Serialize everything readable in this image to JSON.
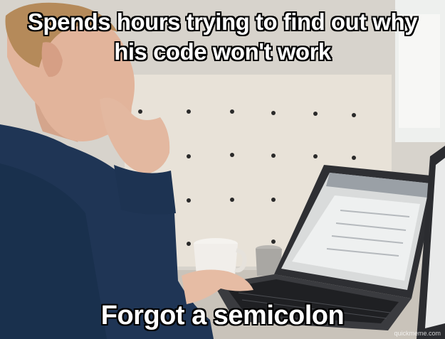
{
  "meme": {
    "top_line1": "Spends hours trying to find out why",
    "top_line2": "his code won't work",
    "bottom_text": "Forgot a semicolon",
    "watermark": "quickmeme.com"
  },
  "colors": {
    "sweater": "#1f3555",
    "skin": "#e3b8a0",
    "laptop": "#2d2e31",
    "wall": "#ece8e1",
    "pegboard": "#e7e1d7"
  }
}
